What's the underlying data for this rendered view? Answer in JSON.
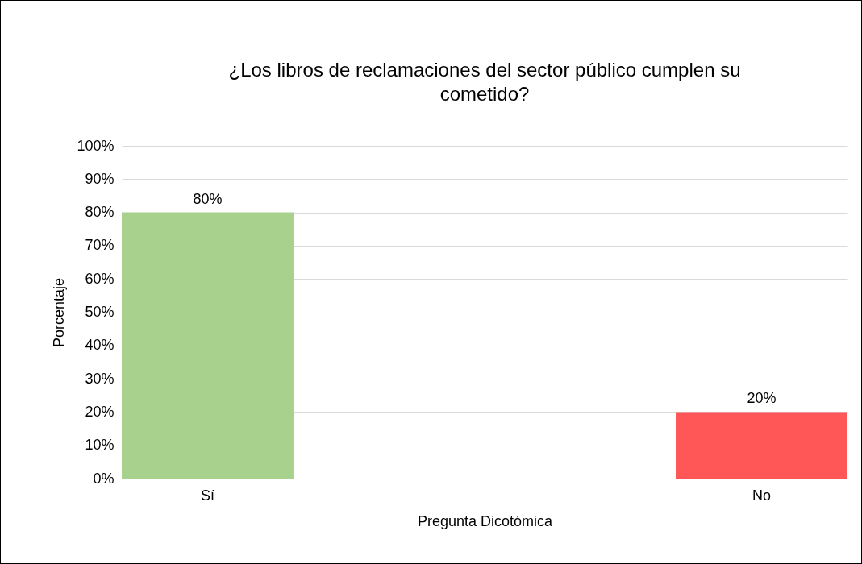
{
  "chart_data": {
    "type": "bar",
    "title": "¿Los libros de reclamaciones del sector público cumplen su cometido?",
    "xlabel": "Pregunta Dicotómica",
    "ylabel": "Porcentaje",
    "categories": [
      "Sí",
      "No"
    ],
    "values": [
      80,
      20
    ],
    "colors": [
      "#a9d18e",
      "#ff5757"
    ],
    "value_labels": [
      "80%",
      "20%"
    ],
    "ylim": [
      0,
      100
    ],
    "yticks": [
      {
        "value": 0,
        "label": "0%"
      },
      {
        "value": 10,
        "label": "10%"
      },
      {
        "value": 20,
        "label": "20%"
      },
      {
        "value": 30,
        "label": "30%"
      },
      {
        "value": 40,
        "label": "40%"
      },
      {
        "value": 50,
        "label": "50%"
      },
      {
        "value": 60,
        "label": "60%"
      },
      {
        "value": 70,
        "label": "70%"
      },
      {
        "value": 80,
        "label": "80%"
      },
      {
        "value": 90,
        "label": "90%"
      },
      {
        "value": 100,
        "label": "100%"
      }
    ],
    "grid": "y"
  }
}
